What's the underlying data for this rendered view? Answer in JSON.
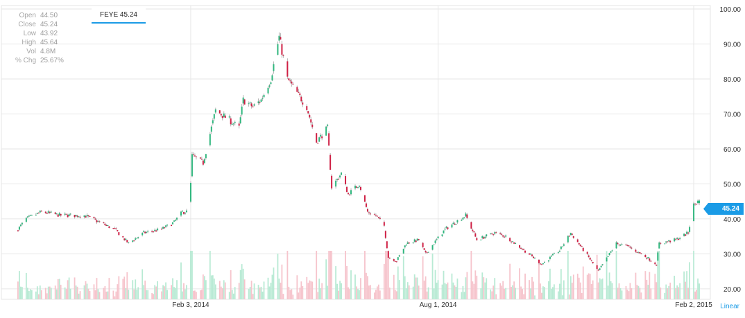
{
  "ticker_box": {
    "label": "FEYE 45.24"
  },
  "info_panel": [
    {
      "label": "Open",
      "value": "44.50"
    },
    {
      "label": "Close",
      "value": "45.24"
    },
    {
      "label": "Low",
      "value": "43.92"
    },
    {
      "label": "High",
      "value": "45.64"
    },
    {
      "label": "Vol",
      "value": "4.8M"
    },
    {
      "label": "% Chg",
      "value": "25.67%"
    }
  ],
  "last_price_tag": "45.24",
  "scale_mode": "Linear",
  "colors": {
    "up": "#2eb67d",
    "down": "#cf1f44",
    "accent": "#1a9be6",
    "volume_up": "#b8ead4",
    "volume_down": "#f6c4cc"
  },
  "chart_data": {
    "type": "candlestick",
    "x_tick_labels": [
      "Feb 3, 2014",
      "Aug 1, 2014",
      "Feb 2, 2015"
    ],
    "y_tick_labels": [
      "100.00",
      "90.00",
      "80.00",
      "70.00",
      "60.00",
      "50.00",
      "40.00",
      "30.00",
      "20.00"
    ],
    "ylim": [
      17,
      101
    ],
    "grid": true,
    "path": [
      [
        "2013-10-01",
        37
      ],
      [
        "2013-10-07",
        40
      ],
      [
        "2013-10-18",
        42
      ],
      [
        "2013-11-01",
        41
      ],
      [
        "2013-11-18",
        41
      ],
      [
        "2013-11-29",
        39
      ],
      [
        "2013-12-10",
        37
      ],
      [
        "2013-12-20",
        33
      ],
      [
        "2013-12-31",
        36
      ],
      [
        "2014-01-13",
        37
      ],
      [
        "2014-01-22",
        39
      ],
      [
        "2014-01-28",
        42
      ],
      [
        "2014-02-02",
        42
      ],
      [
        "2014-02-04",
        58
      ],
      [
        "2014-02-12",
        56
      ],
      [
        "2014-02-21",
        71
      ],
      [
        "2014-03-04",
        68
      ],
      [
        "2014-03-10",
        66
      ],
      [
        "2014-03-13",
        74
      ],
      [
        "2014-03-20",
        72
      ],
      [
        "2014-03-26",
        74
      ],
      [
        "2014-04-02",
        80
      ],
      [
        "2014-04-08",
        92
      ],
      [
        "2014-04-14",
        80
      ],
      [
        "2014-04-21",
        76
      ],
      [
        "2014-04-28",
        72
      ],
      [
        "2014-05-05",
        62
      ],
      [
        "2014-05-13",
        66
      ],
      [
        "2014-05-16",
        49
      ],
      [
        "2014-05-23",
        53
      ],
      [
        "2014-05-28",
        47
      ],
      [
        "2014-06-05",
        50
      ],
      [
        "2014-06-11",
        42
      ],
      [
        "2014-06-17",
        41
      ],
      [
        "2014-06-23",
        38
      ],
      [
        "2014-06-26",
        29
      ],
      [
        "2014-07-02",
        28
      ],
      [
        "2014-07-09",
        33
      ],
      [
        "2014-07-18",
        34
      ],
      [
        "2014-07-23",
        30
      ],
      [
        "2014-08-06",
        37
      ],
      [
        "2014-08-21",
        41
      ],
      [
        "2014-08-29",
        34
      ],
      [
        "2014-09-11",
        36
      ],
      [
        "2014-09-19",
        35
      ],
      [
        "2014-09-29",
        32
      ],
      [
        "2014-10-09",
        29
      ],
      [
        "2014-10-15",
        27
      ],
      [
        "2014-10-28",
        31
      ],
      [
        "2014-11-05",
        36
      ],
      [
        "2014-11-18",
        29
      ],
      [
        "2014-11-25",
        25
      ],
      [
        "2014-12-08",
        33
      ],
      [
        "2014-12-17",
        32
      ],
      [
        "2014-12-30",
        29
      ],
      [
        "2015-01-06",
        27
      ],
      [
        "2015-01-08",
        33
      ],
      [
        "2015-01-20",
        34
      ],
      [
        "2015-01-29",
        36
      ],
      [
        "2015-02-02",
        44
      ],
      [
        "2015-02-06",
        45.24
      ]
    ]
  }
}
